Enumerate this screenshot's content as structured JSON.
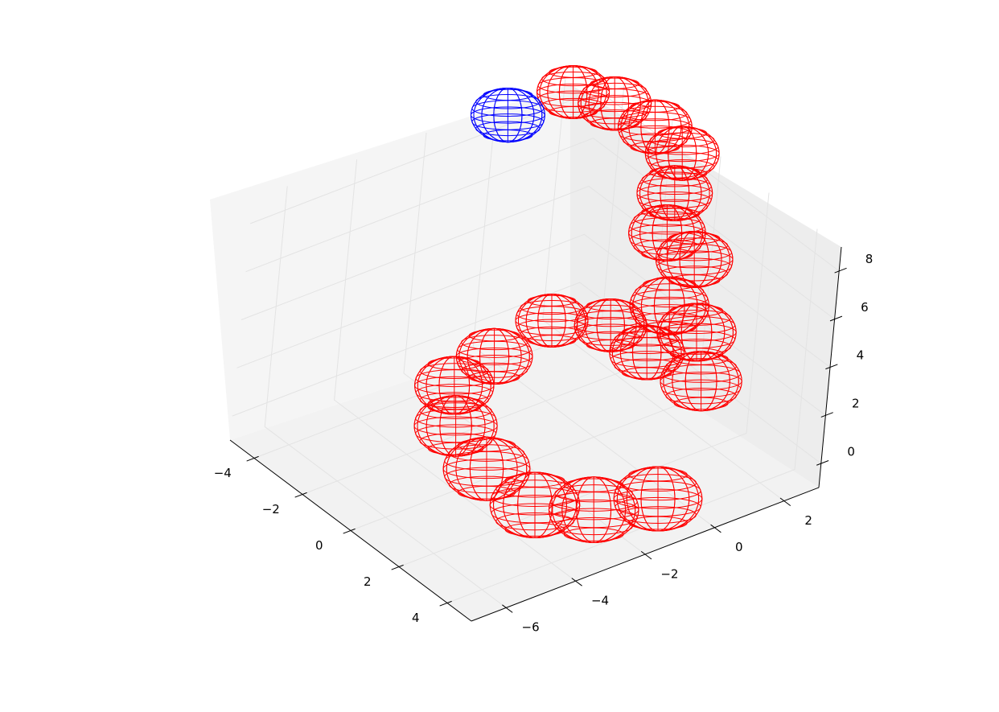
{
  "chart_data": {
    "type": "scatter",
    "projection": "3d",
    "marker": "wireframe-sphere",
    "title": "",
    "xlabel": "",
    "ylabel": "",
    "zlabel": "",
    "grid": true,
    "x_ticks": [
      "−4",
      "−2",
      "0",
      "2",
      "4"
    ],
    "y_ticks": [
      "−6",
      "−4",
      "−2",
      "0",
      "2"
    ],
    "z_ticks": [
      "0",
      "2",
      "4",
      "6",
      "8"
    ],
    "xlim": [
      -5,
      5
    ],
    "ylim": [
      -7,
      3
    ],
    "zlim": [
      -1,
      9
    ],
    "colors": {
      "highlight": "#0000ff",
      "default": "#ff0000"
    },
    "series": [
      {
        "color": "#ff0000",
        "points": [
          {
            "x": -4.0,
            "y": 1.5,
            "z": 0.0
          },
          {
            "x": -3.5,
            "y": -0.5,
            "z": 0.0
          },
          {
            "x": -3.0,
            "y": -2.0,
            "z": 0.0
          },
          {
            "x": -1.5,
            "y": -3.0,
            "z": 0.0
          },
          {
            "x": 0.5,
            "y": -3.5,
            "z": 0.0
          },
          {
            "x": 2.5,
            "y": -3.5,
            "z": 0.0
          },
          {
            "x": 3.5,
            "y": -2.5,
            "z": 0.0
          },
          {
            "x": 4.0,
            "y": -1.0,
            "z": 0.0
          },
          {
            "x": -3.0,
            "y": 2.5,
            "z": 0.0
          },
          {
            "x": -1.5,
            "y": 2.5,
            "z": 0.0
          },
          {
            "x": 2.0,
            "y": 1.5,
            "z": 2.0
          },
          {
            "x": 1.0,
            "y": 2.0,
            "z": 3.0
          },
          {
            "x": 0.5,
            "y": 1.5,
            "z": 4.0
          },
          {
            "x": 0.0,
            "y": 2.5,
            "z": 5.0
          },
          {
            "x": -0.5,
            "y": 2.0,
            "z": 6.0
          },
          {
            "x": -1.0,
            "y": 2.5,
            "z": 7.0
          },
          {
            "x": -1.5,
            "y": 3.0,
            "z": 8.0
          },
          {
            "x": -2.0,
            "y": 2.5,
            "z": 9.0
          },
          {
            "x": -3.0,
            "y": 2.0,
            "z": 9.5
          },
          {
            "x": -4.0,
            "y": 1.5,
            "z": 9.5
          }
        ]
      },
      {
        "color": "#0000ff",
        "points": [
          {
            "x": -4.5,
            "y": 0.0,
            "z": 9.0
          }
        ]
      }
    ]
  }
}
